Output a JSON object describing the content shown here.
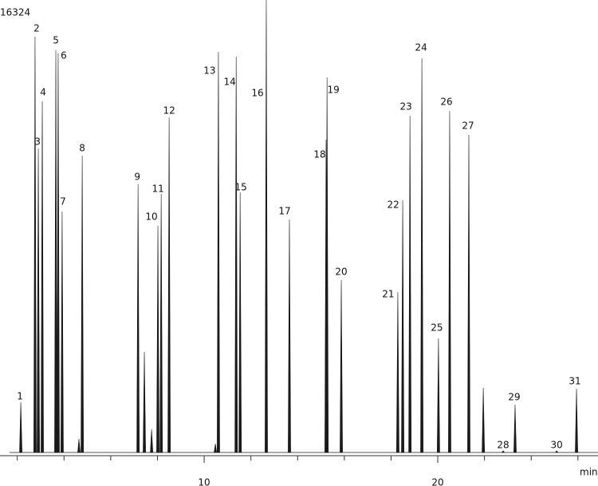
{
  "chart_data": {
    "type": "chromatogram",
    "x_label": "min",
    "color": "#1a1a1a",
    "xlim": [
      1.26,
      26.86
    ],
    "ylim": [
      0,
      16324
    ],
    "xticks": [
      10,
      20
    ],
    "xminor_ticks": [
      2,
      4,
      6,
      8,
      12,
      14,
      16,
      18,
      22,
      24,
      26
    ],
    "x": [
      2.15,
      2.76,
      2.9,
      3.07,
      3.65,
      3.75,
      3.92,
      4.64,
      4.78,
      7.17,
      7.44,
      7.75,
      8.02,
      8.16,
      8.5,
      10.48,
      10.61,
      11.37,
      11.54,
      12.66,
      13.65,
      15.22,
      15.26,
      15.87,
      18.29,
      18.5,
      18.81,
      19.32,
      20.03,
      20.51,
      21.33,
      21.95,
      22.8,
      23.31,
      25.09,
      25.94
    ],
    "values": [
      1814,
      15000,
      10969,
      12667,
      14510,
      14395,
      8694,
      489,
      10710,
      9673,
      3628,
      835,
      8176,
      9328,
      12091,
      317,
      14452,
      14280,
      9385,
      16324,
      8407,
      11286,
      13531,
      6219,
      5787,
      9097,
      12149,
      14222,
      4117,
      12322,
      11458,
      2332,
      60,
      1727,
      60,
      2303
    ],
    "labels": [
      "1",
      "2",
      "3",
      "4",
      "5",
      "6",
      "7",
      null,
      "8",
      "9",
      null,
      null,
      "10",
      "11",
      "12",
      null,
      "13",
      "14",
      "15",
      "16",
      "17",
      "18",
      "19",
      "20",
      "21",
      "22",
      "23",
      "24",
      "25",
      "26",
      "27",
      null,
      "28",
      "29",
      "30",
      "31"
    ]
  }
}
